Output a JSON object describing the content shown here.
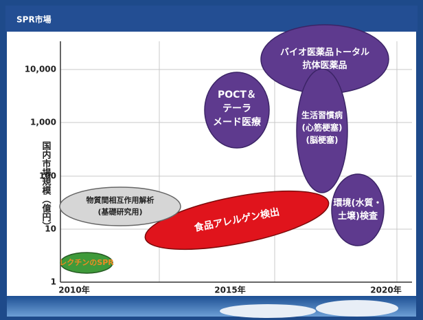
{
  "header": {
    "title": "SPR市場"
  },
  "axes": {
    "y_label": "国内市場規模（億円）",
    "y_ticks": [
      "10,000",
      "1,000",
      "100",
      "10",
      "1"
    ],
    "x_ticks": [
      "2010年",
      "2015年",
      "2020年"
    ]
  },
  "regions": [
    {
      "lines": [
        "バイオ医薬品トータル",
        "抗体医薬品"
      ]
    },
    {
      "lines": [
        "POCT＆",
        "テーラ",
        "メード医療"
      ]
    },
    {
      "lines": [
        "生活習慣病",
        "(心筋梗塞)",
        "(脳梗塞)"
      ]
    },
    {
      "lines": [
        "環境(水質・",
        "土壌)検査"
      ]
    },
    {
      "lines": [
        "食品アレルゲン検出"
      ]
    },
    {
      "lines": [
        "物質間相互作用解析",
        "(基礎研究用)"
      ]
    },
    {
      "lines": [
        "レクチンのSPR"
      ]
    }
  ]
}
